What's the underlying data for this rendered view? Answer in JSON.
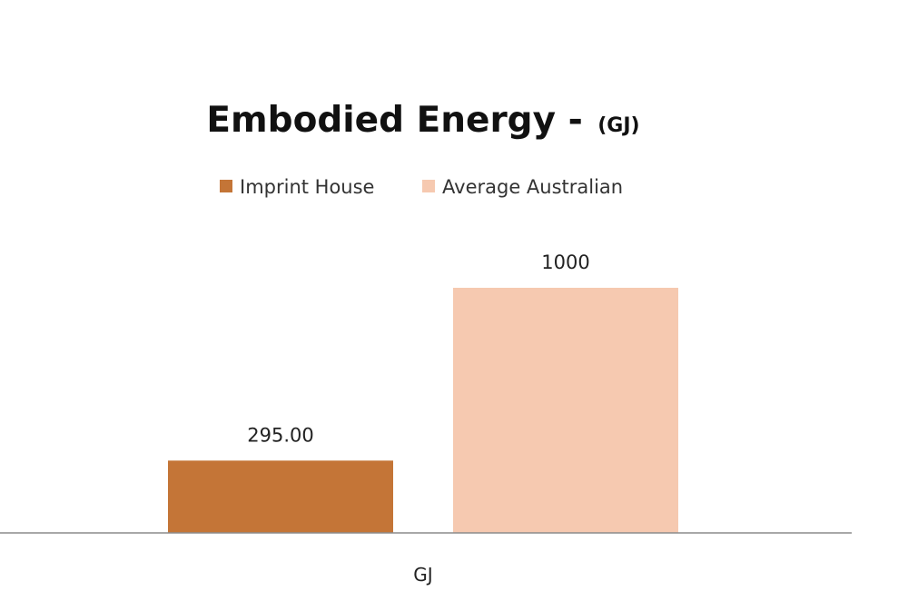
{
  "chart_data": {
    "type": "bar",
    "title": "Embodied Energy -",
    "title_unit": "(GJ)",
    "categories": [
      "GJ"
    ],
    "series": [
      {
        "name": "Imprint House",
        "values": [
          295
        ],
        "label": "295.00",
        "color": "#c47537"
      },
      {
        "name": "Average Australian",
        "values": [
          1000
        ],
        "label": "1000",
        "color": "#f6c9b0"
      }
    ],
    "ylim": [
      0,
      1000
    ],
    "grid": false,
    "legend_position": "top",
    "axis_color": "#8c8c8c"
  }
}
